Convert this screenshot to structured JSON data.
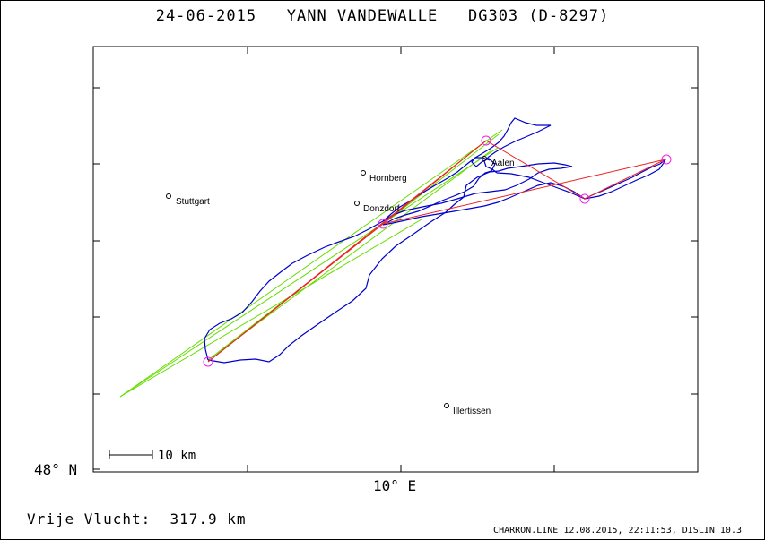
{
  "header": {
    "title": "24-06-2015   YANN VANDEWALLE   DG303 (D-8297)"
  },
  "map": {
    "lat_label": "48° N",
    "lon_label": "10° E",
    "scale_label": "10 km",
    "places": [
      {
        "name": "Stuttgart"
      },
      {
        "name": "Hornberg"
      },
      {
        "name": "Donzdorf"
      },
      {
        "name": "Aalen"
      },
      {
        "name": "Illertissen"
      }
    ],
    "colors": {
      "track": "#0000cc",
      "task": "#ee2222",
      "turnpoint": "#ee22ee",
      "sector": "#66dd00"
    }
  },
  "footer": {
    "distance": "Vrije Vlucht:  317.9 km",
    "credit": "CHARRON.LINE 12.08.2015, 22:11:53, DISLIN 10.3"
  }
}
